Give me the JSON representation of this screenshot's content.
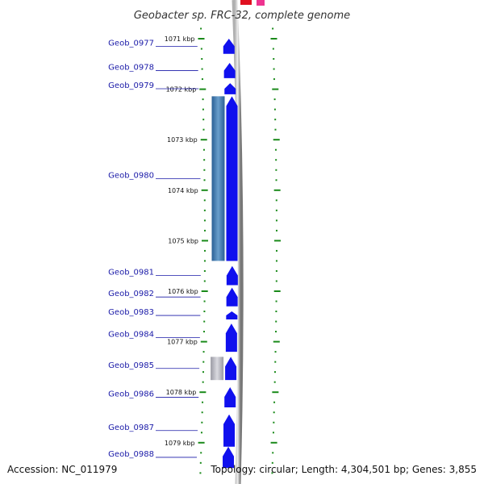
{
  "title": "Geobacter sp. FRC-32, complete genome",
  "accession": "Accession: NC_011979",
  "topology": "Topology: circular; Length: 4,304,501 bp; Genes: 3,855",
  "colors": {
    "gene": "#1010ee",
    "highlight_blue": "#4a7fb0",
    "highlight_gray": "#b8b8c0",
    "backbone": "#888888",
    "tick": "#1a8a1a",
    "label": "#1a1aa8",
    "top_red": "#e01020",
    "top_pink": "#ee3390"
  },
  "kbp_ticks": [
    {
      "kbp": 1071,
      "label": "1071 kbp"
    },
    {
      "kbp": 1072,
      "label": "1072 kbp"
    },
    {
      "kbp": 1073,
      "label": "1073 kbp"
    },
    {
      "kbp": 1074,
      "label": "1074 kbp"
    },
    {
      "kbp": 1075,
      "label": "1075 kbp"
    },
    {
      "kbp": 1076,
      "label": "1076 kbp"
    },
    {
      "kbp": 1077,
      "label": "1077 kbp"
    },
    {
      "kbp": 1078,
      "label": "1078 kbp"
    },
    {
      "kbp": 1079,
      "label": "1079 kbp"
    }
  ],
  "genes": [
    {
      "name": "Geob_0977",
      "start_kbp": 1071.0,
      "end_kbp": 1071.3
    },
    {
      "name": "Geob_0978",
      "start_kbp": 1071.48,
      "end_kbp": 1071.78
    },
    {
      "name": "Geob_0979",
      "start_kbp": 1071.88,
      "end_kbp": 1072.1
    },
    {
      "name": "Geob_0980",
      "start_kbp": 1072.14,
      "end_kbp": 1075.4
    },
    {
      "name": "Geob_0981",
      "start_kbp": 1075.5,
      "end_kbp": 1075.88
    },
    {
      "name": "Geob_0982",
      "start_kbp": 1075.93,
      "end_kbp": 1076.3
    },
    {
      "name": "Geob_0983",
      "start_kbp": 1076.4,
      "end_kbp": 1076.56
    },
    {
      "name": "Geob_0984",
      "start_kbp": 1076.64,
      "end_kbp": 1077.2
    },
    {
      "name": "Geob_0985",
      "start_kbp": 1077.3,
      "end_kbp": 1077.76
    },
    {
      "name": "Geob_0986",
      "start_kbp": 1077.9,
      "end_kbp": 1078.3
    },
    {
      "name": "Geob_0987",
      "start_kbp": 1078.44,
      "end_kbp": 1079.08
    },
    {
      "name": "Geob_0988",
      "start_kbp": 1079.08,
      "end_kbp": 1079.5
    }
  ],
  "highlights": [
    {
      "gene": "Geob_0980",
      "color": "#4a7fb0"
    },
    {
      "gene": "Geob_0985",
      "color": "#b8b8c0"
    }
  ]
}
